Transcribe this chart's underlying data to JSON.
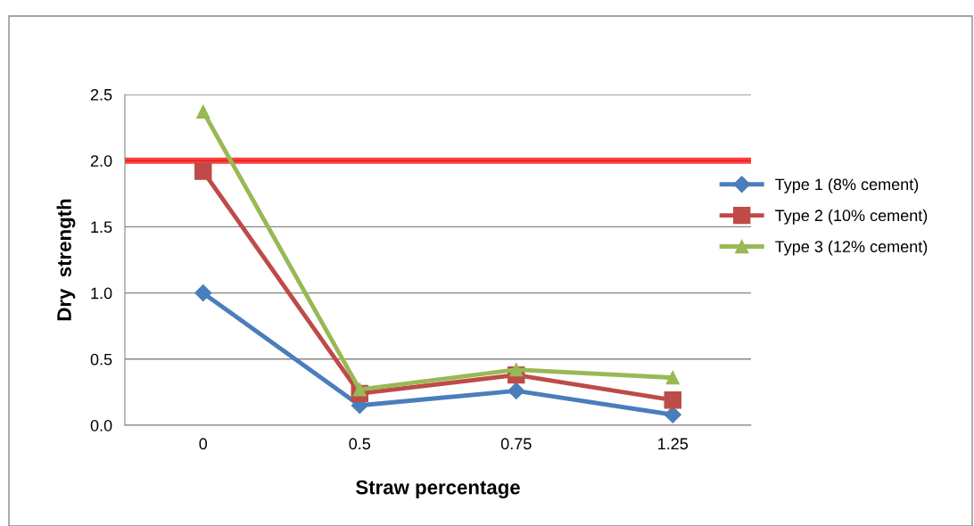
{
  "chart_data": {
    "type": "line",
    "xlabel": "Straw percentage",
    "ylabel": "Dry  strength",
    "categories": [
      "0",
      "0.5",
      "0.75",
      "1.25"
    ],
    "series": [
      {
        "name": "Type 1 (8% cement)",
        "color": "#4a7ebb",
        "marker": "diamond",
        "values": [
          1.0,
          0.15,
          0.26,
          0.08
        ]
      },
      {
        "name": "Type 2 (10% cement)",
        "color": "#be4b48",
        "marker": "square",
        "values": [
          1.92,
          0.24,
          0.38,
          0.19
        ]
      },
      {
        "name": "Type 3 (12% cement)",
        "color": "#98b954",
        "marker": "triangle",
        "values": [
          2.37,
          0.27,
          0.42,
          0.36
        ]
      }
    ],
    "ylim": [
      0,
      2.5
    ],
    "yticks": [
      {
        "value": 0,
        "label": "0.0"
      },
      {
        "value": 0.5,
        "label": "0.5"
      },
      {
        "value": 1,
        "label": "1.0"
      },
      {
        "value": 1.5,
        "label": "1.5"
      },
      {
        "value": 2,
        "label": "2.0"
      },
      {
        "value": 2.5,
        "label": "2.5"
      }
    ],
    "ref_lines": [
      {
        "axis": "y",
        "value": 2.0,
        "color": "#ff0000"
      }
    ],
    "grid": "y",
    "legend": "right",
    "line_style": "solid"
  }
}
